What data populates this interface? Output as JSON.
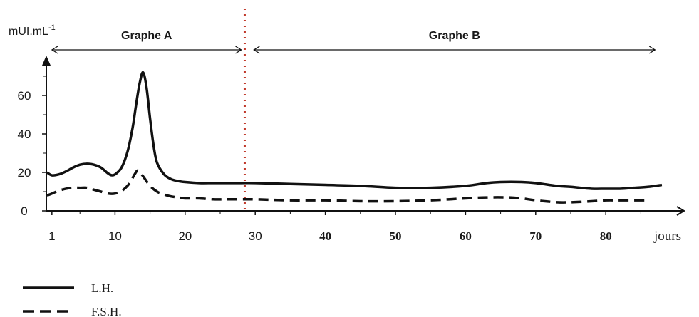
{
  "chart_data": {
    "type": "line",
    "ylabel": "mUI.mL",
    "ylabel_exponent": "-1",
    "xlabel": "jours",
    "xlim": [
      0,
      88
    ],
    "ylim": [
      0,
      75
    ],
    "x_ticks": [
      1,
      10,
      20,
      30,
      40,
      50,
      60,
      70,
      80
    ],
    "y_ticks": [
      0,
      20,
      40,
      60
    ],
    "grid": false,
    "legend_position": "bottom-left",
    "separator_x": 28.5,
    "sections": [
      {
        "label": "Graphe A",
        "x_range": [
          0,
          28
        ]
      },
      {
        "label": "Graphe B",
        "x_range": [
          29,
          86
        ]
      }
    ],
    "series": [
      {
        "name": "L.H.",
        "style": "solid",
        "color": "#111111",
        "x": [
          0.3,
          1,
          2,
          3,
          4,
          5,
          6,
          7,
          8,
          9,
          9.6,
          10.2,
          11,
          11.8,
          12.5,
          13,
          13.5,
          14,
          14.5,
          15,
          15.5,
          16,
          17,
          18,
          19,
          20,
          22,
          24,
          26,
          28,
          30,
          35,
          40,
          45,
          50,
          55,
          60,
          63,
          65,
          68,
          70,
          73,
          75,
          78,
          80,
          82,
          84,
          86,
          88
        ],
        "y": [
          20,
          18.5,
          19,
          20.5,
          22.5,
          24,
          24.5,
          24,
          22.5,
          19.5,
          18.5,
          19.5,
          23,
          31,
          43,
          55,
          66,
          72,
          64,
          48,
          34,
          25,
          19,
          16.5,
          15.5,
          15,
          14.5,
          14.5,
          14.5,
          14.5,
          14.5,
          14,
          13.5,
          13,
          12,
          12,
          13,
          14.5,
          15,
          15,
          14.5,
          13,
          12.5,
          11.5,
          11.5,
          11.5,
          12,
          12.5,
          13.5
        ]
      },
      {
        "name": "F.S.H.",
        "style": "dashed",
        "color": "#111111",
        "x": [
          0.3,
          1,
          2,
          3,
          4,
          5,
          6,
          7,
          8,
          9,
          10,
          11,
          12,
          12.8,
          13.3,
          14,
          15,
          16,
          17,
          18,
          19,
          20,
          22,
          24,
          26,
          28,
          30,
          35,
          40,
          45,
          50,
          55,
          60,
          63,
          66,
          68,
          70,
          73,
          75,
          78,
          80,
          82,
          84,
          86
        ],
        "y": [
          8,
          9,
          10.5,
          11.5,
          12,
          12,
          12,
          11,
          10,
          9,
          9,
          10.5,
          14,
          19,
          21,
          18,
          13,
          10,
          8.5,
          7.5,
          7,
          6.5,
          6.5,
          6,
          6,
          6,
          6,
          5.5,
          5.5,
          5,
          5,
          5.5,
          6.5,
          7,
          7,
          6.5,
          5.5,
          4.5,
          4.5,
          5,
          5.5,
          5.5,
          5.5,
          5.5
        ]
      }
    ]
  }
}
